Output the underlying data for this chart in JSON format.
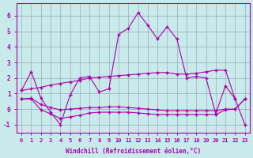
{
  "background_color": "#c8eaea",
  "grid_color": "#99aabb",
  "line_color": "#aa00aa",
  "marker": "+",
  "xlim": [
    -0.5,
    23.5
  ],
  "ylim": [
    -1.5,
    6.8
  ],
  "yticks": [
    -1,
    0,
    1,
    2,
    3,
    4,
    5,
    6
  ],
  "xticks": [
    0,
    1,
    2,
    3,
    4,
    5,
    6,
    7,
    8,
    9,
    10,
    11,
    12,
    13,
    14,
    15,
    16,
    17,
    18,
    19,
    20,
    21,
    22,
    23
  ],
  "xlabel": "Windchill (Refroidissement éolien,°C)",
  "line1_x": [
    0,
    1,
    2,
    3,
    4,
    5,
    6,
    7,
    8,
    9,
    10,
    11,
    12,
    13,
    14,
    15,
    16,
    17,
    18,
    19,
    20,
    21,
    22
  ],
  "line1_y": [
    1.2,
    2.4,
    0.7,
    -0.2,
    -1.0,
    0.9,
    2.0,
    2.1,
    1.1,
    1.3,
    4.8,
    5.2,
    6.2,
    5.4,
    4.5,
    5.3,
    4.5,
    2.0,
    2.1,
    2.0,
    -0.3,
    1.5,
    0.65
  ],
  "line2_x": [
    0,
    1,
    2,
    3,
    4,
    5,
    6,
    7,
    8,
    9,
    10,
    11,
    12,
    13,
    14,
    15,
    16,
    17,
    18,
    19,
    20,
    21,
    22,
    23
  ],
  "line2_y": [
    1.2,
    1.3,
    1.4,
    1.55,
    1.65,
    1.75,
    1.85,
    2.0,
    2.05,
    2.1,
    2.15,
    2.2,
    2.25,
    2.3,
    2.35,
    2.35,
    2.25,
    2.25,
    2.3,
    2.4,
    2.5,
    2.5,
    0.65,
    -1.0
  ],
  "line3_x": [
    0,
    1,
    2,
    3,
    4,
    5,
    6,
    7,
    8,
    9,
    10,
    11,
    12,
    13,
    14,
    15,
    16,
    17,
    18,
    19,
    20,
    21,
    22,
    23
  ],
  "line3_y": [
    0.65,
    0.7,
    0.3,
    0.1,
    -0.05,
    0.0,
    0.05,
    0.1,
    0.1,
    0.15,
    0.15,
    0.1,
    0.05,
    0.0,
    -0.05,
    -0.1,
    -0.1,
    -0.1,
    -0.1,
    -0.1,
    -0.1,
    0.0,
    0.0,
    0.65
  ],
  "line4_x": [
    0,
    1,
    2,
    3,
    4,
    5,
    6,
    7,
    8,
    9,
    10,
    11,
    12,
    13,
    14,
    15,
    16,
    17,
    18,
    19,
    20,
    21,
    22,
    23
  ],
  "line4_y": [
    0.65,
    0.65,
    -0.05,
    -0.3,
    -0.6,
    -0.5,
    -0.4,
    -0.25,
    -0.2,
    -0.2,
    -0.2,
    -0.2,
    -0.25,
    -0.3,
    -0.35,
    -0.35,
    -0.35,
    -0.35,
    -0.35,
    -0.35,
    -0.35,
    -0.05,
    0.0,
    0.65
  ]
}
